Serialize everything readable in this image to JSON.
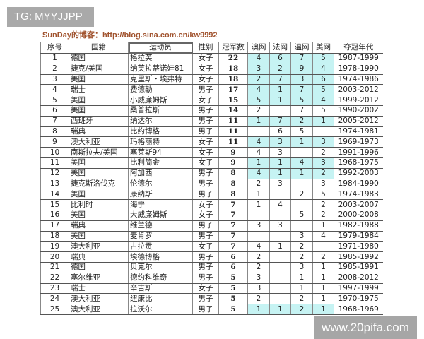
{
  "overlay_tag": "TG: MYYJJPP",
  "blog_title": "SunDay的博客：http://blog.sina.com.cn/kw9992",
  "watermark": "www.20pifa.com",
  "highlight_color": "#c6f3f3",
  "headers": [
    "序号",
    "国籍",
    "运动员",
    "性别",
    "冠军数",
    "澳网",
    "法网",
    "温网",
    "美网",
    "夺冠年代"
  ],
  "rows": [
    {
      "no": "1",
      "country": "德国",
      "player": "格拉芙",
      "gender": "女子",
      "titles": "22",
      "ao": "4",
      "fo": "6",
      "wb": "7",
      "uso": "5",
      "years": "1987-1999",
      "all_four": true
    },
    {
      "no": "2",
      "country": "捷克/美国",
      "player": "纳芙拉蒂诺娃81",
      "gender": "女子",
      "titles": "18",
      "ao": "3",
      "fo": "2",
      "wb": "9",
      "uso": "4",
      "years": "1978-1990",
      "all_four": true
    },
    {
      "no": "3",
      "country": "美国",
      "player": "克里斯・埃弗特",
      "gender": "女子",
      "titles": "18",
      "ao": "2",
      "fo": "7",
      "wb": "3",
      "uso": "6",
      "years": "1974-1986",
      "all_four": true
    },
    {
      "no": "4",
      "country": "瑞士",
      "player": "费德勒",
      "gender": "男子",
      "titles": "17",
      "ao": "4",
      "fo": "1",
      "wb": "7",
      "uso": "5",
      "years": "2003-2012",
      "all_four": true
    },
    {
      "no": "5",
      "country": "美国",
      "player": "小威廉姆斯",
      "gender": "女子",
      "titles": "15",
      "ao": "5",
      "fo": "1",
      "wb": "5",
      "uso": "4",
      "years": "1999-2012",
      "all_four": true
    },
    {
      "no": "6",
      "country": "美国",
      "player": "桑普拉斯",
      "gender": "男子",
      "titles": "14",
      "ao": "2",
      "fo": "",
      "wb": "7",
      "uso": "5",
      "years": "1990-2002",
      "all_four": false
    },
    {
      "no": "7",
      "country": "西班牙",
      "player": "纳达尔",
      "gender": "男子",
      "titles": "11",
      "ao": "1",
      "fo": "7",
      "wb": "2",
      "uso": "1",
      "years": "2005-2012",
      "all_four": true
    },
    {
      "no": "8",
      "country": "瑞典",
      "player": "比约博格",
      "gender": "男子",
      "titles": "11",
      "ao": "",
      "fo": "6",
      "wb": "5",
      "uso": "",
      "years": "1974-1981",
      "all_four": false
    },
    {
      "no": "9",
      "country": "澳大利亚",
      "player": "玛格丽特",
      "gender": "女子",
      "titles": "11",
      "ao": "4",
      "fo": "3",
      "wb": "1",
      "uso": "3",
      "years": "1969-1973",
      "all_four": true
    },
    {
      "no": "10",
      "country": "南斯拉夫/美国",
      "player": "塞莱斯94",
      "gender": "女子",
      "titles": "9",
      "ao": "4",
      "fo": "3",
      "wb": "",
      "uso": "2",
      "years": "1991-1996",
      "all_four": false
    },
    {
      "no": "11",
      "country": "美国",
      "player": "比利简金",
      "gender": "女子",
      "titles": "9",
      "ao": "1",
      "fo": "1",
      "wb": "4",
      "uso": "3",
      "years": "1968-1975",
      "all_four": true
    },
    {
      "no": "12",
      "country": "美国",
      "player": "阿加西",
      "gender": "男子",
      "titles": "8",
      "ao": "4",
      "fo": "1",
      "wb": "1",
      "uso": "2",
      "years": "1992-2003",
      "all_four": true
    },
    {
      "no": "13",
      "country": "捷克斯洛伐克",
      "player": "伦德尔",
      "gender": "男子",
      "titles": "8",
      "ao": "2",
      "fo": "3",
      "wb": "",
      "uso": "3",
      "years": "1984-1990",
      "all_four": false
    },
    {
      "no": "14",
      "country": "美国",
      "player": "康纳斯",
      "gender": "男子",
      "titles": "8",
      "ao": "1",
      "fo": "",
      "wb": "2",
      "uso": "5",
      "years": "1974-1983",
      "all_four": false
    },
    {
      "no": "15",
      "country": "比利时",
      "player": "海宁",
      "gender": "女子",
      "titles": "7",
      "ao": "1",
      "fo": "4",
      "wb": "",
      "uso": "2",
      "years": "2003-2007",
      "all_four": false
    },
    {
      "no": "16",
      "country": "美国",
      "player": "大威廉姆斯",
      "gender": "女子",
      "titles": "7",
      "ao": "",
      "fo": "",
      "wb": "5",
      "uso": "2",
      "years": "2000-2008",
      "all_four": false
    },
    {
      "no": "17",
      "country": "瑞典",
      "player": "维兰德",
      "gender": "男子",
      "titles": "7",
      "ao": "3",
      "fo": "3",
      "wb": "",
      "uso": "1",
      "years": "1982-1988",
      "all_four": false
    },
    {
      "no": "18",
      "country": "美国",
      "player": "麦肯罗",
      "gender": "男子",
      "titles": "7",
      "ao": "",
      "fo": "",
      "wb": "3",
      "uso": "4",
      "years": "1979-1984",
      "all_four": false
    },
    {
      "no": "19",
      "country": "澳大利亚",
      "player": "古拉贡",
      "gender": "女子",
      "titles": "7",
      "ao": "4",
      "fo": "1",
      "wb": "2",
      "uso": "",
      "years": "1971-1980",
      "all_four": false
    },
    {
      "no": "20",
      "country": "瑞典",
      "player": "埃德博格",
      "gender": "男子",
      "titles": "6",
      "ao": "2",
      "fo": "",
      "wb": "2",
      "uso": "2",
      "years": "1985-1992",
      "all_four": false
    },
    {
      "no": "21",
      "country": "德国",
      "player": "贝克尔",
      "gender": "男子",
      "titles": "6",
      "ao": "2",
      "fo": "",
      "wb": "3",
      "uso": "1",
      "years": "1985-1991",
      "all_four": false
    },
    {
      "no": "22",
      "country": "塞尔维亚",
      "player": "德约科维奇",
      "gender": "男子",
      "titles": "5",
      "ao": "3",
      "fo": "",
      "wb": "1",
      "uso": "1",
      "years": "2008-2012",
      "all_four": false
    },
    {
      "no": "23",
      "country": "瑞士",
      "player": "辛吉斯",
      "gender": "女子",
      "titles": "5",
      "ao": "3",
      "fo": "",
      "wb": "1",
      "uso": "1",
      "years": "1997-1999",
      "all_four": false
    },
    {
      "no": "24",
      "country": "澳大利亚",
      "player": "纽康比",
      "gender": "男子",
      "titles": "5",
      "ao": "2",
      "fo": "",
      "wb": "2",
      "uso": "1",
      "years": "1970-1975",
      "all_four": false
    },
    {
      "no": "25",
      "country": "澳大利亚",
      "player": "拉沃尔",
      "gender": "男子",
      "titles": "5",
      "ao": "1",
      "fo": "1",
      "wb": "2",
      "uso": "1",
      "years": "1968-1969",
      "all_four": true
    }
  ]
}
